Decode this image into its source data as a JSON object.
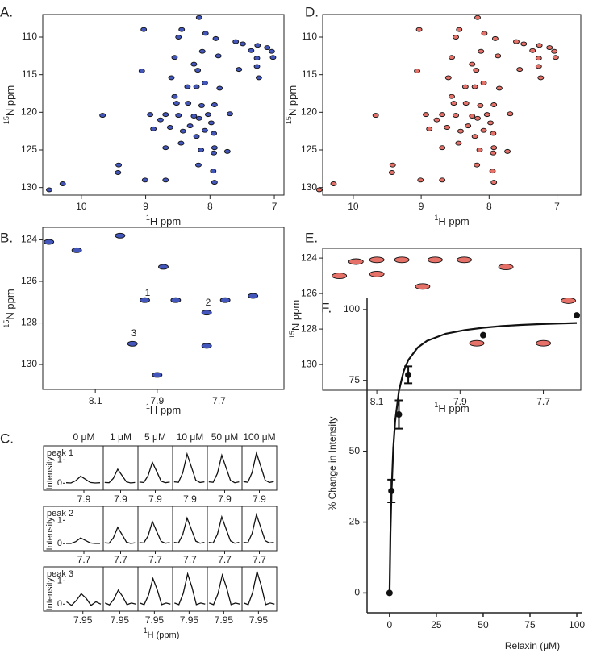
{
  "chart_data": [
    {
      "type": "spectrum",
      "panel_label": "A.",
      "color": "#2238b0",
      "xlabel_sup": "1",
      "xlabel": "H ppm",
      "ylabel_sup": "15",
      "ylabel": "N ppm",
      "xlim": [
        10.6,
        6.85
      ],
      "ylim": [
        131,
        107
      ],
      "xticks": [
        10,
        9,
        8,
        7
      ],
      "yticks": [
        110,
        115,
        120,
        125,
        130
      ],
      "x": [
        8.17,
        9.03,
        8.44,
        8.07,
        8.49,
        7.91,
        7.6,
        7.49,
        7.26,
        7.11,
        7.04,
        7.02,
        7.36,
        8.12,
        8.55,
        7.87,
        7.27,
        7.27,
        8.25,
        9.06,
        8.19,
        7.55,
        8.6,
        7.24,
        8.35,
        8.08,
        7.85,
        8.21,
        8.55,
        8.52,
        8.34,
        8.13,
        7.93,
        9.67,
        8.93,
        8.69,
        8.49,
        8.25,
        8.17,
        8.03,
        7.69,
        8.77,
        7.98,
        8.31,
        8.88,
        8.62,
        8.42,
        8.08,
        7.94,
        8.21,
        8.45,
        8.69,
        7.93,
        8.14,
        7.73,
        7.94,
        9.42,
        8.18,
        9.43,
        7.95,
        9.01,
        8.69,
        7.93,
        10.29,
        10.5
      ],
      "values": [
        107.4,
        109.0,
        109.0,
        109.5,
        110.0,
        110.2,
        110.6,
        110.9,
        111.1,
        111.4,
        111.9,
        112.7,
        111.8,
        111.9,
        112.7,
        112.5,
        112.8,
        113.9,
        113.6,
        114.5,
        114.4,
        114.3,
        115.4,
        115.4,
        116.6,
        116.1,
        116.8,
        116.6,
        117.9,
        118.8,
        118.8,
        119.1,
        119.0,
        120.4,
        120.3,
        120.3,
        120.4,
        120.5,
        120.8,
        120.3,
        120.2,
        121.0,
        121.4,
        121.8,
        122.2,
        122.0,
        122.5,
        122.4,
        122.8,
        123.2,
        124.1,
        124.7,
        124.7,
        125.0,
        125.2,
        125.4,
        127.0,
        127.0,
        128.0,
        127.8,
        129.0,
        129.0,
        129.3,
        129.5,
        130.3
      ]
    },
    {
      "type": "spectrum",
      "panel_label": "B.",
      "color": "#2238b0",
      "xlabel_sup": "1",
      "xlabel": "H ppm",
      "ylabel_sup": "15",
      "ylabel": "N ppm",
      "xlim": [
        8.27,
        7.49
      ],
      "ylim": [
        131.2,
        123.4
      ],
      "xticks": [
        8.1,
        7.9,
        7.7
      ],
      "yticks": [
        124,
        126,
        128,
        130
      ],
      "x": [
        8.25,
        8.16,
        8.02,
        7.88,
        7.94,
        7.84,
        7.74,
        7.68,
        7.59,
        7.98,
        7.74,
        7.9
      ],
      "values": [
        124.1,
        124.5,
        123.8,
        125.3,
        126.9,
        126.9,
        127.5,
        126.9,
        126.7,
        129.0,
        129.1,
        130.5
      ],
      "annotations": [
        "1",
        "2",
        "3"
      ]
    },
    {
      "type": "trace-panels",
      "panel_label": "C.",
      "columns": [
        "0 μM",
        "1 μM",
        "5 μM",
        "10 μM",
        "50 μM",
        "100 μM"
      ],
      "ylabel": "Intensity",
      "xlabel_sup": "1",
      "xlabel": "H (ppm)",
      "ylim": [
        -0.3,
        1.6
      ],
      "yticks": [
        0,
        1
      ],
      "color": "#111111",
      "rows": [
        {
          "label": "peak 1",
          "xlim": [
            8.02,
            7.78
          ],
          "xticks": [
            7.9
          ],
          "x": [
            8.01,
            7.98,
            7.95,
            7.92,
            7.89,
            7.86,
            7.83,
            7.8
          ],
          "traces": [
            [
              0.02,
              0.01,
              0.11,
              0.3,
              0.17,
              0.03,
              0.01,
              0.02
            ],
            [
              0.03,
              0.02,
              0.21,
              0.6,
              0.33,
              0.06,
              0.01,
              0.03
            ],
            [
              0.05,
              0.03,
              0.32,
              0.9,
              0.5,
              0.09,
              0.02,
              0.05
            ],
            [
              0.06,
              0.04,
              0.44,
              1.25,
              0.69,
              0.13,
              0.03,
              0.06
            ],
            [
              0.06,
              0.04,
              0.42,
              1.2,
              0.66,
              0.12,
              0.02,
              0.06
            ],
            [
              0.07,
              0.04,
              0.46,
              1.3,
              0.72,
              0.13,
              0.03,
              0.07
            ]
          ]
        },
        {
          "label": "peak 2",
          "xlim": [
            7.82,
            7.58
          ],
          "xticks": [
            7.7
          ],
          "x": [
            7.81,
            7.78,
            7.75,
            7.72,
            7.69,
            7.66,
            7.63,
            7.6
          ],
          "traces": [
            [
              0.01,
              0.01,
              0.09,
              0.25,
              0.14,
              0.03,
              0.01,
              0.01
            ],
            [
              0.04,
              0.02,
              0.25,
              0.7,
              0.39,
              0.07,
              0.01,
              0.04
            ],
            [
              0.05,
              0.03,
              0.33,
              0.95,
              0.52,
              0.1,
              0.02,
              0.05
            ],
            [
              0.06,
              0.03,
              0.39,
              1.1,
              0.61,
              0.11,
              0.02,
              0.06
            ],
            [
              0.06,
              0.03,
              0.4,
              1.15,
              0.63,
              0.12,
              0.02,
              0.06
            ],
            [
              0.06,
              0.04,
              0.44,
              1.25,
              0.69,
              0.13,
              0.03,
              0.06
            ]
          ]
        },
        {
          "label": "peak 3",
          "xlim": [
            7.995,
            7.9
          ],
          "xticks": [
            7.95
          ],
          "x": [
            7.99,
            7.978,
            7.966,
            7.954,
            7.942,
            7.93,
            7.918,
            7.906
          ],
          "traces": [
            [
              0.1,
              -0.05,
              0.16,
              0.45,
              0.25,
              -0.05,
              0.1,
              0.0
            ],
            [
              0.05,
              -0.03,
              0.21,
              0.6,
              0.33,
              -0.02,
              0.05,
              0.0
            ],
            [
              0.05,
              -0.02,
              0.39,
              1.1,
              0.61,
              -0.02,
              0.05,
              0.0
            ],
            [
              0.05,
              -0.02,
              0.46,
              1.3,
              0.72,
              -0.02,
              0.05,
              0.0
            ],
            [
              0.05,
              -0.02,
              0.44,
              1.25,
              0.69,
              -0.02,
              0.05,
              0.0
            ],
            [
              0.05,
              -0.02,
              0.49,
              1.4,
              0.77,
              -0.02,
              0.05,
              0.0
            ]
          ]
        }
      ]
    },
    {
      "type": "spectrum",
      "panel_label": "D.",
      "color": "#e0584e",
      "xlabel_sup": "1",
      "xlabel": "H ppm",
      "ylabel_sup": "15",
      "ylabel": "N ppm",
      "xlim": [
        10.45,
        6.65
      ],
      "ylim": [
        131,
        107
      ],
      "xticks": [
        10,
        9,
        8,
        7
      ],
      "yticks": [
        110,
        115,
        120,
        125,
        130
      ],
      "x": [
        8.17,
        9.03,
        8.44,
        8.07,
        8.49,
        7.91,
        7.6,
        7.49,
        7.26,
        7.11,
        7.04,
        7.02,
        7.36,
        8.12,
        8.55,
        7.87,
        7.27,
        7.27,
        8.25,
        9.06,
        8.19,
        7.55,
        8.6,
        7.24,
        8.35,
        8.08,
        7.85,
        8.21,
        8.55,
        8.52,
        8.34,
        8.13,
        7.93,
        9.67,
        8.93,
        8.69,
        8.49,
        8.25,
        8.17,
        8.03,
        7.69,
        8.77,
        7.98,
        8.31,
        8.88,
        8.62,
        8.42,
        8.08,
        7.94,
        8.21,
        8.45,
        8.69,
        7.93,
        8.14,
        7.73,
        7.94,
        9.42,
        8.18,
        9.43,
        7.95,
        9.01,
        8.69,
        7.93,
        10.29,
        10.5
      ],
      "values": [
        107.4,
        109.0,
        109.0,
        109.5,
        110.0,
        110.2,
        110.6,
        110.9,
        111.1,
        111.4,
        111.9,
        112.7,
        111.8,
        111.9,
        112.7,
        112.5,
        112.8,
        113.9,
        113.6,
        114.5,
        114.4,
        114.3,
        115.4,
        115.4,
        116.6,
        116.1,
        116.8,
        116.6,
        117.9,
        118.8,
        118.8,
        119.1,
        119.0,
        120.4,
        120.3,
        120.3,
        120.4,
        120.5,
        120.8,
        120.3,
        120.2,
        121.0,
        121.4,
        121.8,
        122.2,
        122.0,
        122.5,
        122.4,
        122.8,
        123.2,
        124.1,
        124.7,
        124.7,
        125.0,
        125.2,
        125.4,
        127.0,
        127.0,
        128.0,
        127.8,
        129.0,
        129.0,
        129.3,
        129.5,
        130.3
      ]
    },
    {
      "type": "spectrum",
      "panel_label": "E.",
      "color": "#e0584e",
      "xlabel_sup": "1",
      "xlabel": "H ppm",
      "ylabel_sup": "15",
      "ylabel": "N ppm",
      "xlim": [
        8.23,
        7.61
      ],
      "ylim": [
        131.45,
        123.45
      ],
      "xticks": [
        8.1,
        7.9,
        7.7
      ],
      "yticks": [
        124,
        126,
        128,
        130
      ],
      "x": [
        8.15,
        8.1,
        8.04,
        7.96,
        7.89,
        7.79,
        8.19,
        8.1,
        7.99,
        7.64,
        7.86,
        7.7
      ],
      "values": [
        124.2,
        124.1,
        124.1,
        124.1,
        124.1,
        124.5,
        125.0,
        124.9,
        125.6,
        126.4,
        128.8,
        128.8
      ]
    },
    {
      "type": "scatter",
      "panel_label": "F.",
      "color": "#111111",
      "xlabel": "Relaxin (μM)",
      "ylabel": "% Change in Intensity",
      "xlim": [
        -12,
        103
      ],
      "ylim": [
        -7,
        104
      ],
      "xticks": [
        0,
        25,
        50,
        75,
        100
      ],
      "yticks": [
        0,
        25,
        50,
        75,
        100
      ],
      "x": [
        0,
        1,
        5,
        10,
        50,
        100
      ],
      "values": [
        0,
        36,
        63,
        77,
        91,
        98
      ],
      "errors": [
        null,
        4,
        5,
        3,
        null,
        null
      ],
      "fit": {
        "x": [
          0,
          0.5,
          1,
          2,
          3,
          5,
          7.5,
          10,
          15,
          20,
          30,
          40,
          50,
          60,
          70,
          80,
          90,
          100
        ],
        "values": [
          0,
          21.1,
          34.6,
          51.1,
          60.6,
          71.3,
          78.2,
          82.2,
          86.6,
          89.0,
          91.5,
          92.8,
          93.6,
          94.2,
          94.6,
          94.9,
          95.1,
          95.3
        ]
      }
    }
  ]
}
